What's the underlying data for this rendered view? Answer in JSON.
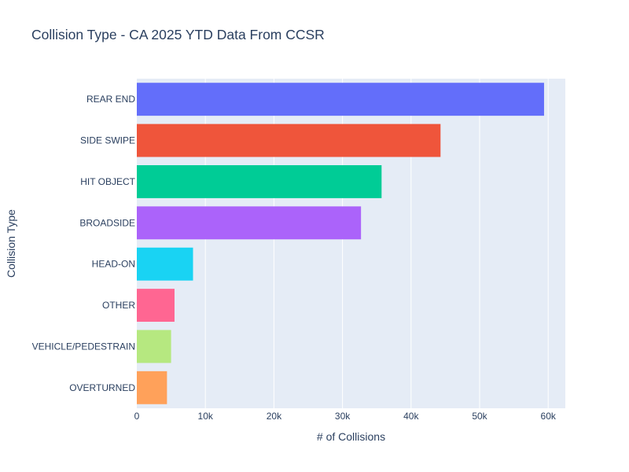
{
  "chart_data": {
    "type": "bar",
    "orientation": "horizontal",
    "title": "Collision Type - CA 2025 YTD Data From CCSR",
    "xlabel": "# of Collisions",
    "ylabel": "Collision Type",
    "xlim": [
      0,
      62500
    ],
    "grid": true,
    "categories": [
      "REAR END",
      "SIDE SWIPE",
      "HIT OBJECT",
      "BROADSIDE",
      "HEAD-ON",
      "OTHER",
      "VEHICLE/PEDESTRAIN",
      "OVERTURNED"
    ],
    "values": [
      59400,
      44300,
      35700,
      32700,
      8200,
      5500,
      5000,
      4400
    ],
    "colors": [
      "#636efa",
      "#ef553b",
      "#00cc96",
      "#ab63fa",
      "#19d3f3",
      "#ff6692",
      "#b6e880",
      "#ffa15a"
    ],
    "x_ticks": [
      0,
      10000,
      20000,
      30000,
      40000,
      50000,
      60000
    ],
    "x_tick_labels": [
      "0",
      "10k",
      "20k",
      "30k",
      "40k",
      "50k",
      "60k"
    ]
  }
}
